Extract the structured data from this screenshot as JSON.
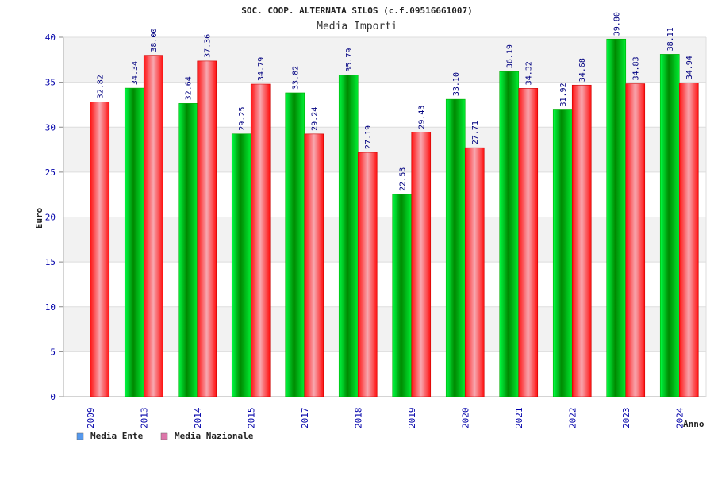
{
  "chart_data": {
    "type": "bar",
    "title": "SOC. COOP. ALTERNATA SILOS (c.f.09516661007)",
    "subtitle": "Media Importi",
    "ylabel": "Euro",
    "xlabel": "Anno",
    "ylim": [
      0,
      40
    ],
    "yticks": [
      0,
      5,
      10,
      15,
      20,
      25,
      30,
      35,
      40
    ],
    "grid": true,
    "legend_position": "bottom-left",
    "categories": [
      "2009",
      "2013",
      "2014",
      "2015",
      "2017",
      "2018",
      "2019",
      "2020",
      "2021",
      "2022",
      "2023",
      "2024"
    ],
    "series": [
      {
        "name": "Media Ente",
        "color": "#00cc00",
        "legend_color": "#5599ee",
        "values": [
          null,
          34.34,
          32.64,
          29.25,
          33.82,
          35.79,
          22.53,
          33.1,
          36.19,
          31.92,
          39.8,
          38.11
        ],
        "labels": [
          "",
          "34.34",
          "32.64",
          "29.25",
          "33.82",
          "35.79",
          "22.53",
          "33.10",
          "36.19",
          "31.92",
          "39.80",
          "38.11"
        ]
      },
      {
        "name": "Media Nazionale",
        "color": "#ff2222",
        "legend_color": "#dd77aa",
        "values": [
          32.82,
          38.0,
          37.36,
          34.79,
          29.24,
          27.19,
          29.43,
          27.71,
          34.32,
          34.68,
          34.83,
          34.94
        ],
        "labels": [
          "32.82",
          "38.00",
          "37.36",
          "34.79",
          "29.24",
          "27.19",
          "29.43",
          "27.71",
          "34.32",
          "34.68",
          "34.83",
          "34.94"
        ]
      }
    ]
  }
}
